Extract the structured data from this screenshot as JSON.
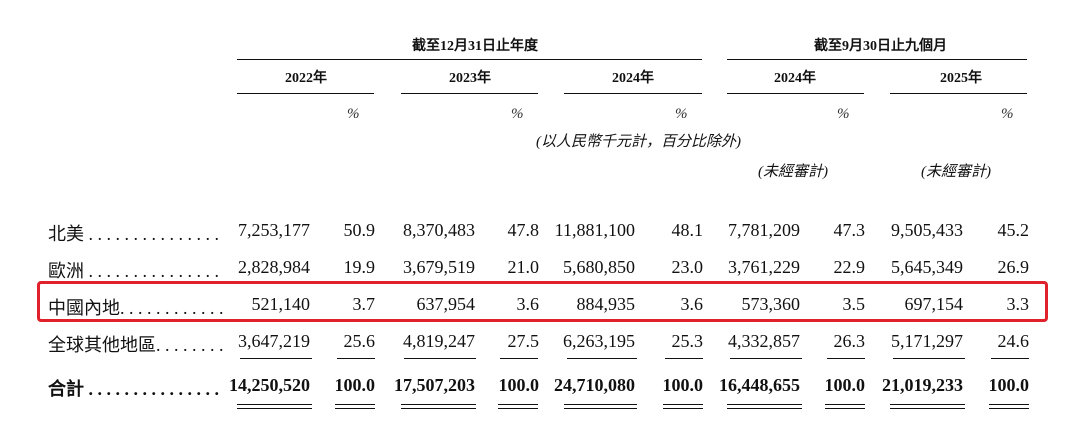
{
  "header": {
    "group1": "截至12月31日止年度",
    "group2": "截至9月30日止九個月",
    "years": [
      "2022年",
      "2023年",
      "2024年",
      "2024年",
      "2025年"
    ],
    "pct_symbol": "%",
    "unit_note": "(以人民幣千元計，百分比除外)",
    "unaudited": "(未經審計)"
  },
  "rows": [
    {
      "label": "北美 . . . . . . . . . . . . . . .",
      "values": [
        "7,253,177",
        "50.9",
        "8,370,483",
        "47.8",
        "11,881,100",
        "48.1",
        "7,781,209",
        "47.3",
        "9,505,433",
        "45.2"
      ]
    },
    {
      "label": "歐洲 . . . . . . . . . . . . . . .",
      "values": [
        "2,828,984",
        "19.9",
        "3,679,519",
        "21.0",
        "5,680,850",
        "23.0",
        "3,761,229",
        "22.9",
        "5,645,349",
        "26.9"
      ]
    },
    {
      "label": "中國內地. . . . . . . . . . . .",
      "values": [
        "521,140",
        "3.7",
        "637,954",
        "3.6",
        "884,935",
        "3.6",
        "573,360",
        "3.5",
        "697,154",
        "3.3"
      ]
    },
    {
      "label": "全球其他地區. . . . . . . .",
      "values": [
        "3,647,219",
        "25.6",
        "4,819,247",
        "27.5",
        "6,263,195",
        "25.3",
        "4,332,857",
        "26.3",
        "5,171,297",
        "24.6"
      ]
    },
    {
      "label": "合計 . . . . . . . . . . . . . . .",
      "values": [
        "14,250,520",
        "100.0",
        "17,507,203",
        "100.0",
        "24,710,080",
        "100.0",
        "16,448,655",
        "100.0",
        "21,019,233",
        "100.0"
      ]
    }
  ],
  "highlight_color": "#e0202a"
}
